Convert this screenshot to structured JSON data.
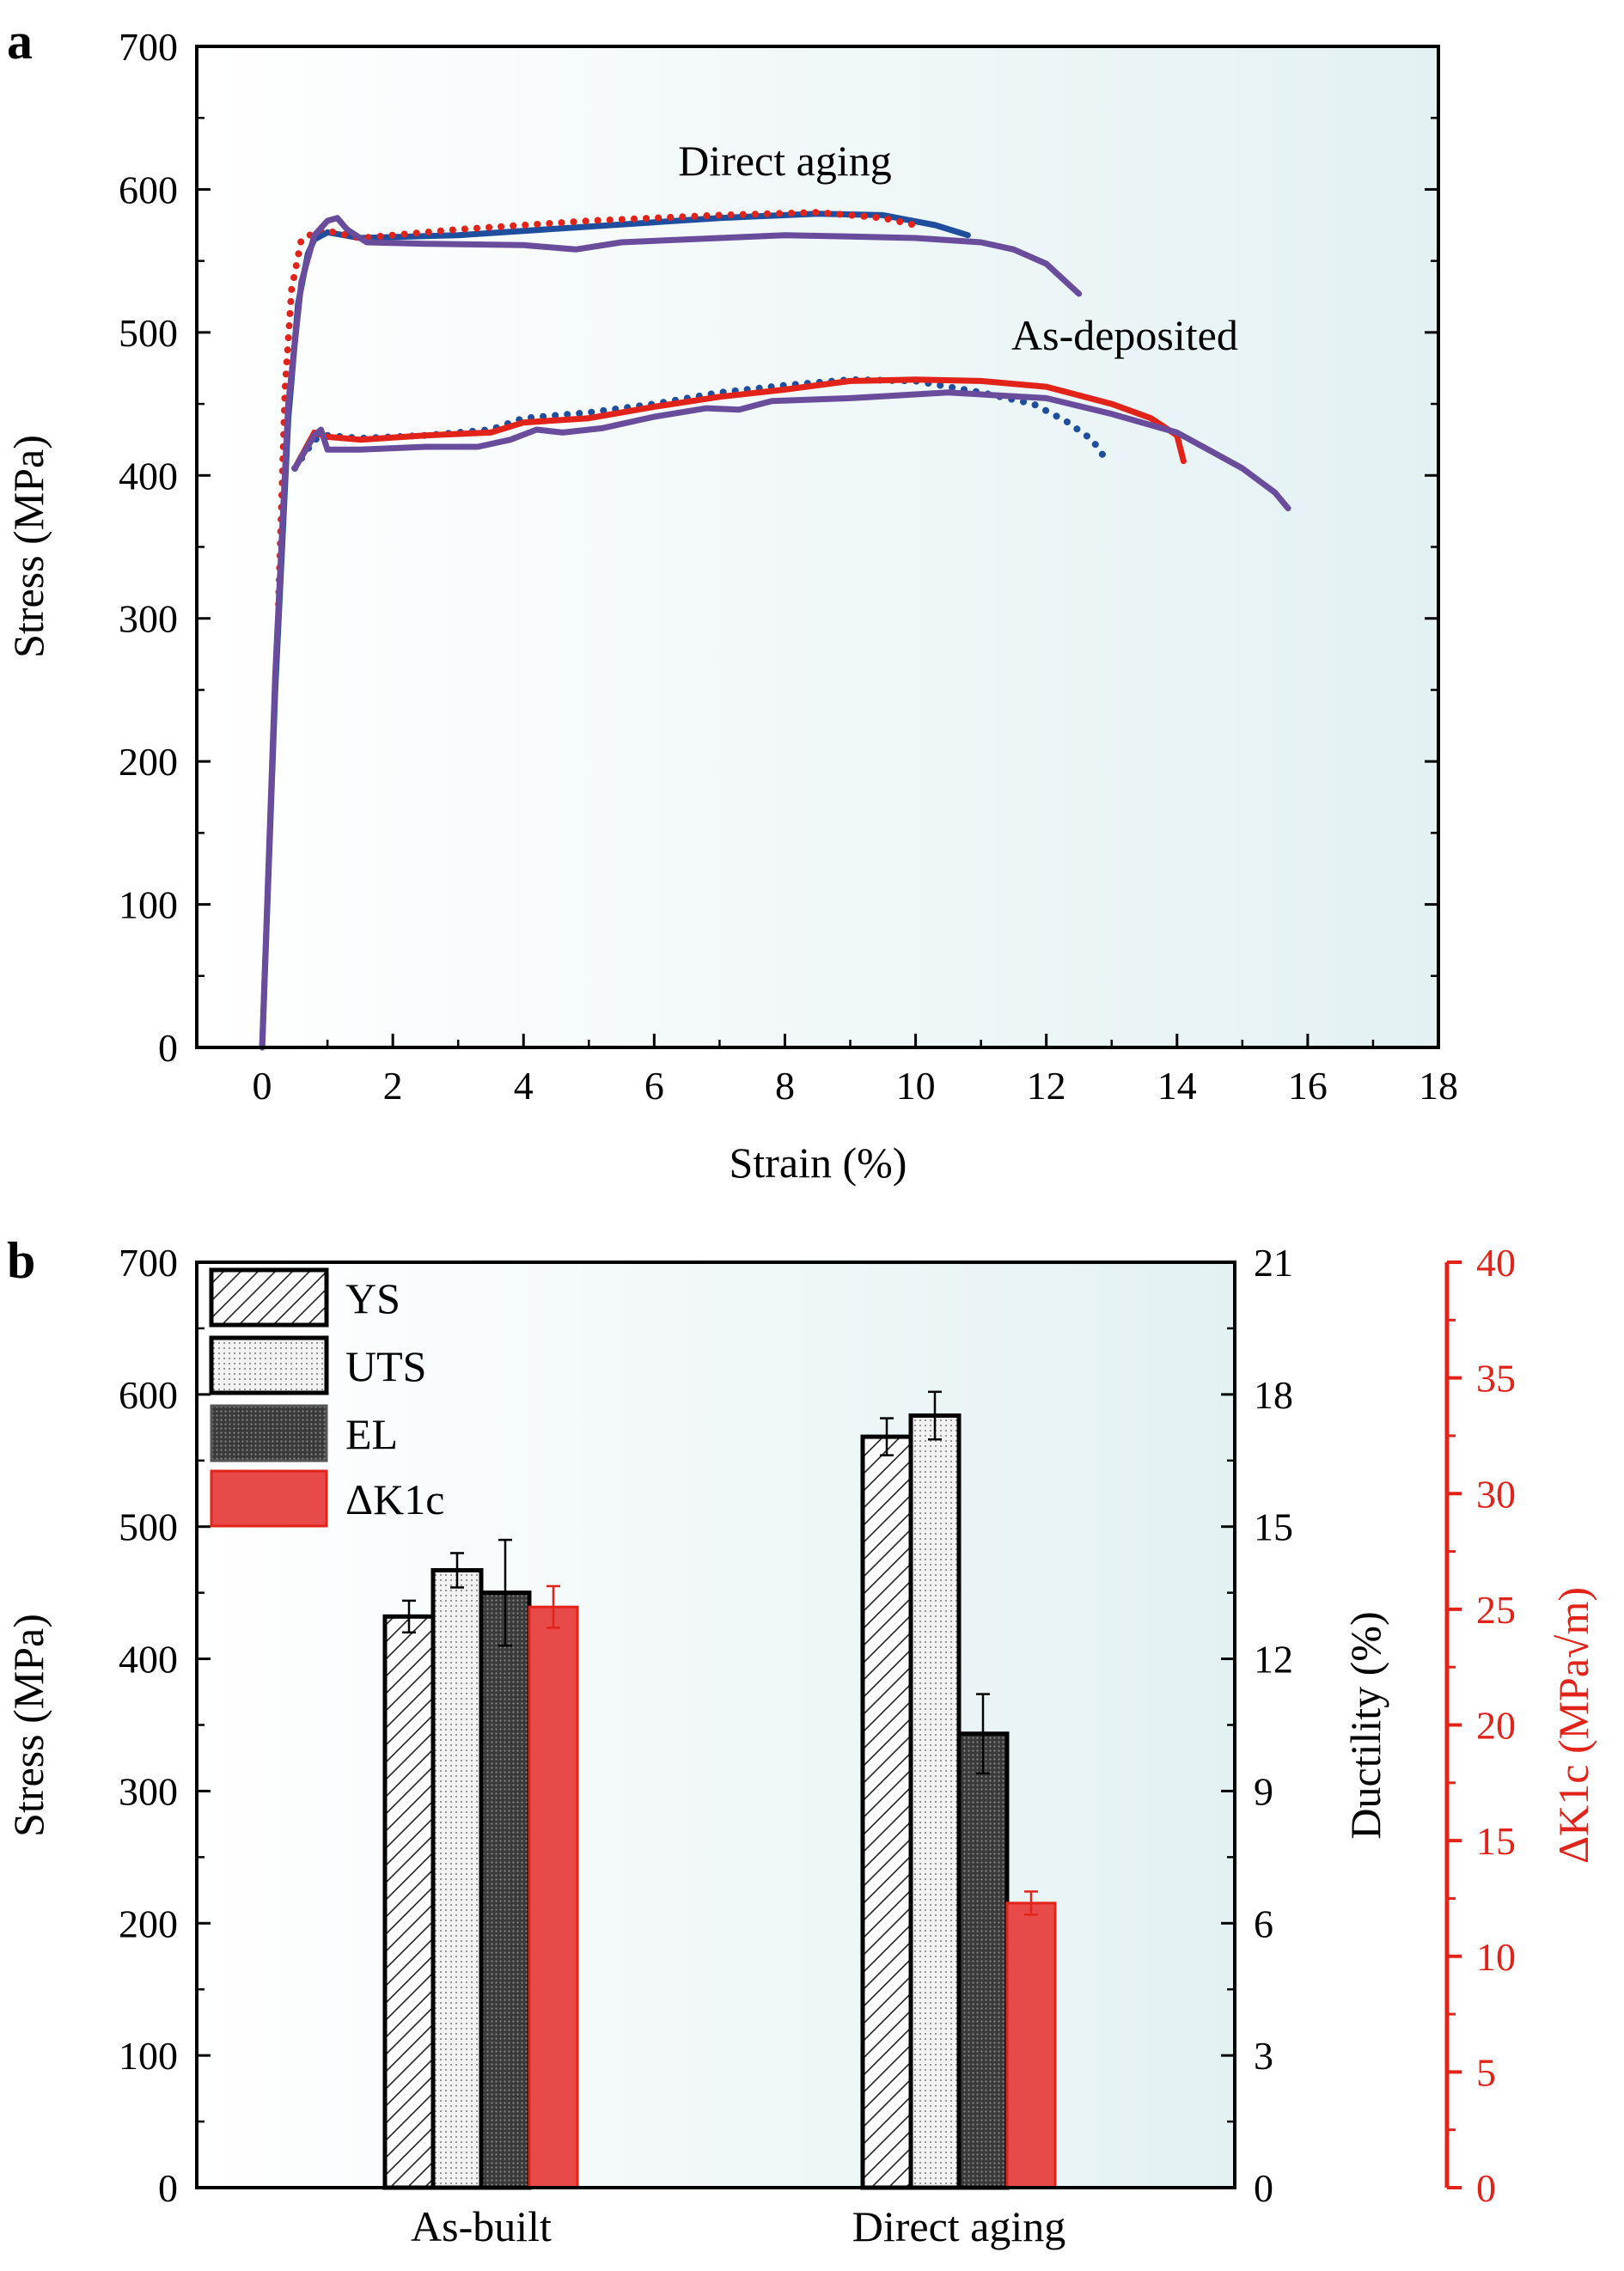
{
  "colors": {
    "blue": "#1f4e9e",
    "red": "#e2231a",
    "purple": "#6a4c9c",
    "red_fill": "#e84a4a",
    "red_axis": "#e2231a",
    "bg_gradient_end": "#e3f1f3"
  },
  "chart_data": [
    {
      "type": "line",
      "panel_label": "a",
      "xlabel": "Strain (%)",
      "ylabel": "Stress (MPa)",
      "xlim": [
        -1,
        18
      ],
      "ylim": [
        0,
        700
      ],
      "xticks": [
        "0",
        "2",
        "4",
        "6",
        "8",
        "10",
        "12",
        "14",
        "16",
        "18"
      ],
      "yticks": [
        "0",
        "100",
        "200",
        "300",
        "400",
        "500",
        "600",
        "700"
      ],
      "grid": false,
      "annotations": [
        {
          "text": "Direct aging",
          "x": 8.0,
          "y": 610
        },
        {
          "text": "As-deposited",
          "x": 13.2,
          "y": 488
        }
      ],
      "series": [
        {
          "group": "Direct aging",
          "color": "blue",
          "style": "solid",
          "points": [
            [
              0,
              0
            ],
            [
              0.2,
              250
            ],
            [
              0.4,
              440
            ],
            [
              0.55,
              520
            ],
            [
              0.7,
              555
            ],
            [
              0.8,
              565
            ],
            [
              1.0,
              570
            ],
            [
              1.5,
              566
            ],
            [
              3,
              568
            ],
            [
              5,
              574
            ],
            [
              7,
              580
            ],
            [
              8.5,
              583
            ],
            [
              9.5,
              582
            ],
            [
              10.3,
              575
            ],
            [
              10.8,
              568
            ]
          ]
        },
        {
          "group": "Direct aging",
          "color": "red",
          "style": "dotted",
          "points": [
            [
              0.25,
              310
            ],
            [
              0.35,
              460
            ],
            [
              0.45,
              530
            ],
            [
              0.6,
              565
            ],
            [
              0.9,
              572
            ],
            [
              1.5,
              566
            ],
            [
              3,
              572
            ],
            [
              5,
              578
            ],
            [
              7,
              582
            ],
            [
              8.5,
              584
            ],
            [
              9.5,
              580
            ],
            [
              10,
              575
            ]
          ]
        },
        {
          "group": "Direct aging",
          "color": "purple",
          "style": "solid",
          "points": [
            [
              0,
              0
            ],
            [
              0.2,
              260
            ],
            [
              0.4,
              450
            ],
            [
              0.6,
              535
            ],
            [
              0.8,
              568
            ],
            [
              1.0,
              578
            ],
            [
              1.15,
              580
            ],
            [
              1.3,
              572
            ],
            [
              1.6,
              563
            ],
            [
              2.5,
              562
            ],
            [
              4,
              561
            ],
            [
              4.8,
              558
            ],
            [
              5.5,
              563
            ],
            [
              7,
              566
            ],
            [
              8,
              568
            ],
            [
              9,
              567
            ],
            [
              10,
              566
            ],
            [
              11,
              563
            ],
            [
              11.5,
              558
            ],
            [
              12,
              548
            ],
            [
              12.5,
              527
            ]
          ]
        },
        {
          "group": "As-deposited",
          "color": "blue",
          "style": "dotted",
          "points": [
            [
              0.5,
              405
            ],
            [
              0.8,
              425
            ],
            [
              1,
              428
            ],
            [
              1.5,
              426
            ],
            [
              2.5,
              428
            ],
            [
              3.5,
              432
            ],
            [
              4,
              440
            ],
            [
              5,
              444
            ],
            [
              6,
              450
            ],
            [
              7,
              458
            ],
            [
              8,
              463
            ],
            [
              9,
              467
            ],
            [
              10,
              466
            ],
            [
              11,
              458
            ],
            [
              11.8,
              450
            ],
            [
              12.3,
              438
            ],
            [
              12.7,
              425
            ],
            [
              12.9,
              412
            ]
          ]
        },
        {
          "group": "As-deposited",
          "color": "red",
          "style": "solid",
          "points": [
            [
              0.5,
              405
            ],
            [
              0.8,
              430
            ],
            [
              1.0,
              427
            ],
            [
              1.5,
              425
            ],
            [
              2.5,
              428
            ],
            [
              3.5,
              430
            ],
            [
              4,
              437
            ],
            [
              5,
              440
            ],
            [
              6,
              448
            ],
            [
              7,
              455
            ],
            [
              8,
              460
            ],
            [
              9,
              466
            ],
            [
              10,
              467
            ],
            [
              11,
              466
            ],
            [
              12,
              462
            ],
            [
              13,
              450
            ],
            [
              13.6,
              440
            ],
            [
              14,
              428
            ],
            [
              14.1,
              410
            ]
          ]
        },
        {
          "group": "As-deposited",
          "color": "purple",
          "style": "solid",
          "points": [
            [
              0.5,
              405
            ],
            [
              0.8,
              428
            ],
            [
              0.9,
              432
            ],
            [
              1.0,
              418
            ],
            [
              1.5,
              418
            ],
            [
              2.5,
              420
            ],
            [
              3.3,
              420
            ],
            [
              3.8,
              425
            ],
            [
              4.2,
              432
            ],
            [
              4.6,
              430
            ],
            [
              5.2,
              433
            ],
            [
              6,
              441
            ],
            [
              6.8,
              447
            ],
            [
              7.3,
              446
            ],
            [
              7.8,
              452
            ],
            [
              9,
              454
            ],
            [
              10.5,
              458
            ],
            [
              12,
              454
            ],
            [
              13,
              443
            ],
            [
              14,
              430
            ],
            [
              15,
              405
            ],
            [
              15.5,
              388
            ],
            [
              15.7,
              377
            ]
          ]
        }
      ]
    },
    {
      "type": "bar",
      "panel_label": "b",
      "categories": [
        "As-built",
        "Direct aging"
      ],
      "ylabel": "Stress (MPa)",
      "ylabel_right": "Ductility (%)",
      "ylabel_right2": "ΔK1c (MPa√m)",
      "ylim": [
        0,
        700
      ],
      "ylim_right": [
        0,
        21
      ],
      "ylim_right2": [
        0,
        40
      ],
      "yticks": [
        "0",
        "100",
        "200",
        "300",
        "400",
        "500",
        "600",
        "700"
      ],
      "yticks_right": [
        "0",
        "3",
        "6",
        "9",
        "12",
        "15",
        "18",
        "21"
      ],
      "yticks_right2": [
        "0",
        "5",
        "10",
        "15",
        "20",
        "25",
        "30",
        "35",
        "40"
      ],
      "legend": [
        "YS",
        "UTS",
        "EL",
        "ΔK1c"
      ],
      "legend_position": "top-left",
      "series": [
        {
          "name": "YS",
          "axis": "left",
          "unit": "MPa",
          "values": [
            432,
            568
          ],
          "errors": [
            12,
            14
          ]
        },
        {
          "name": "UTS",
          "axis": "left",
          "unit": "MPa",
          "values": [
            467,
            584
          ],
          "errors": [
            13,
            18
          ]
        },
        {
          "name": "EL",
          "axis": "right",
          "unit": "%",
          "values": [
            13.5,
            10.3
          ],
          "errors": [
            1.2,
            0.9
          ]
        },
        {
          "name": "ΔK1c",
          "axis": "right2",
          "unit": "MPa√m",
          "values": [
            25.1,
            12.3
          ],
          "errors": [
            0.9,
            0.5
          ]
        }
      ]
    }
  ]
}
